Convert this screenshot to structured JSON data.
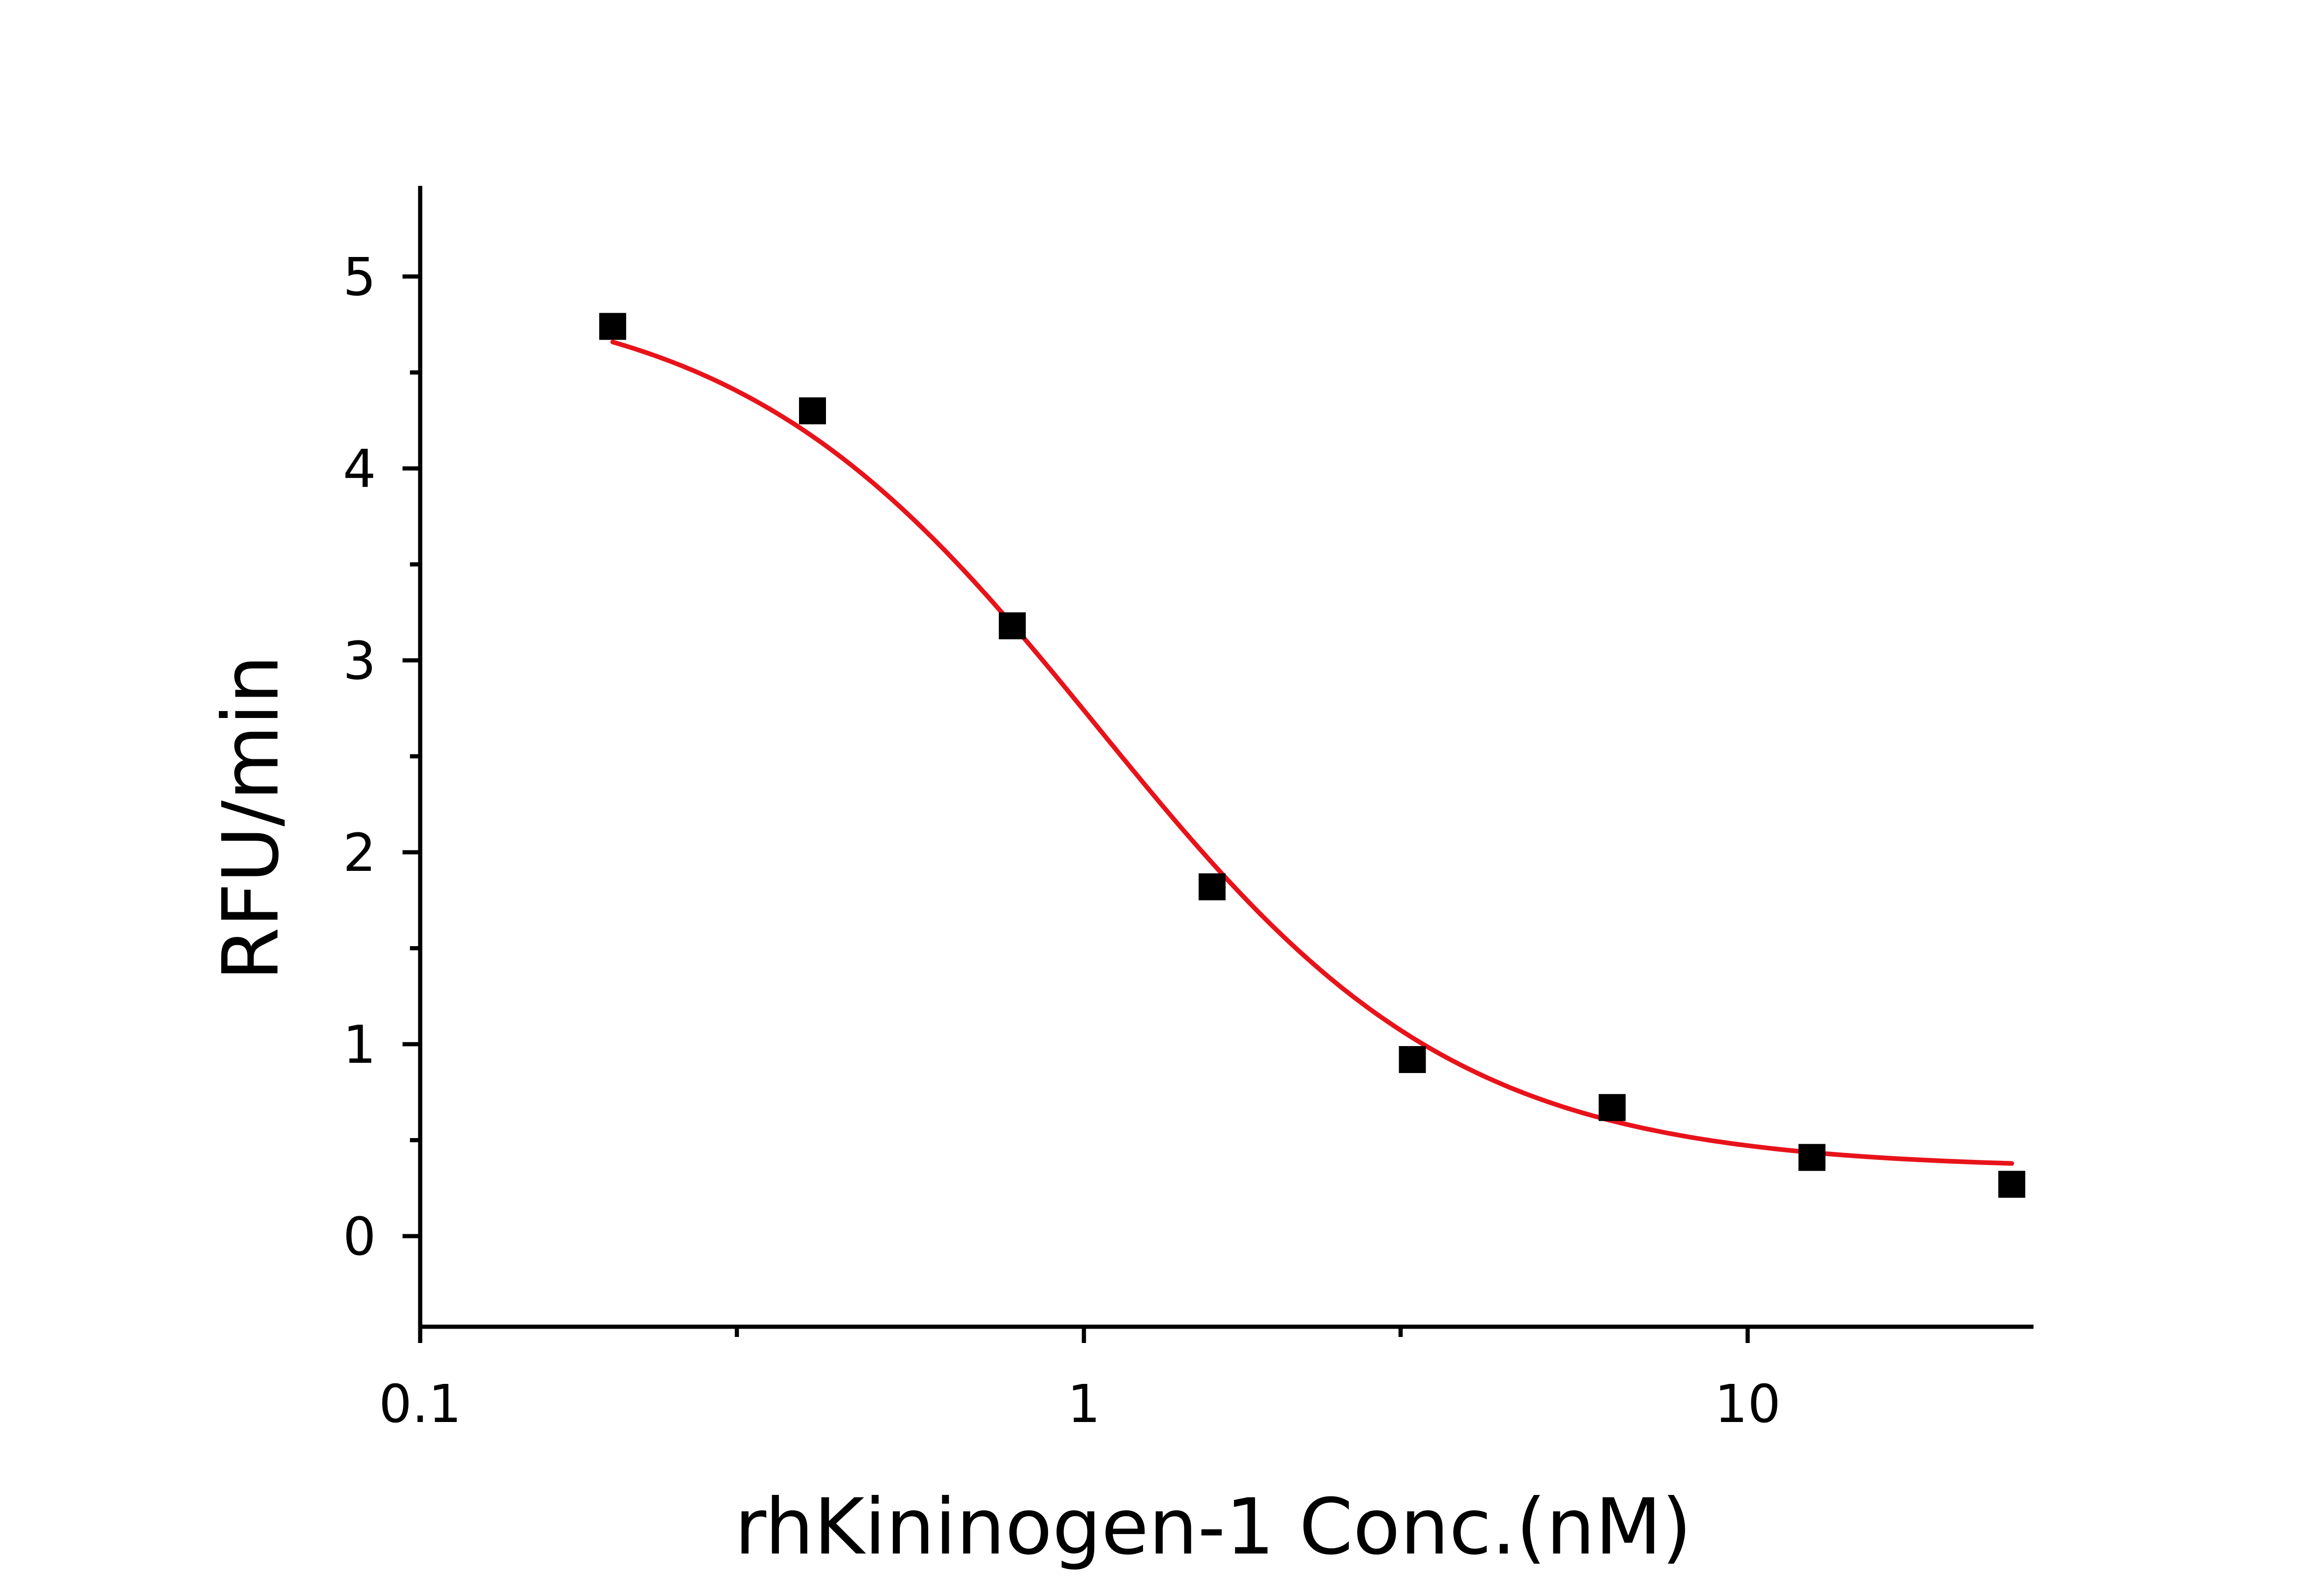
{
  "chart_data": {
    "type": "scatter",
    "title": "",
    "xlabel": "rhKininogen-1 Conc.(nM)",
    "ylabel": "RFU/min",
    "x_scale": "log",
    "xlim": [
      0.1,
      27
    ],
    "ylim": [
      -0.5,
      5.5
    ],
    "x_ticks": [
      0.1,
      1,
      10
    ],
    "x_tick_labels": [
      "0.1",
      "1",
      "10"
    ],
    "y_ticks": [
      0,
      1,
      2,
      3,
      4,
      5
    ],
    "y_tick_labels": [
      "0",
      "1",
      "2",
      "3",
      "4",
      "5"
    ],
    "grid": false,
    "legend": "none",
    "series": [
      {
        "type": "scatter",
        "marker": "square",
        "color": "#000000",
        "x": [
          0.195,
          0.39,
          0.78,
          1.56,
          3.125,
          6.25,
          12.5,
          25
        ],
        "y": [
          4.74,
          4.3,
          3.18,
          1.82,
          0.92,
          0.67,
          0.41,
          0.27
        ]
      },
      {
        "type": "line",
        "color": "#e8131a",
        "fit": "four-parameter logistic",
        "top": 4.95,
        "bottom": 0.35,
        "ec50": 1.05,
        "hill_slope": 1.6,
        "x_range": [
          0.195,
          25
        ]
      }
    ]
  }
}
